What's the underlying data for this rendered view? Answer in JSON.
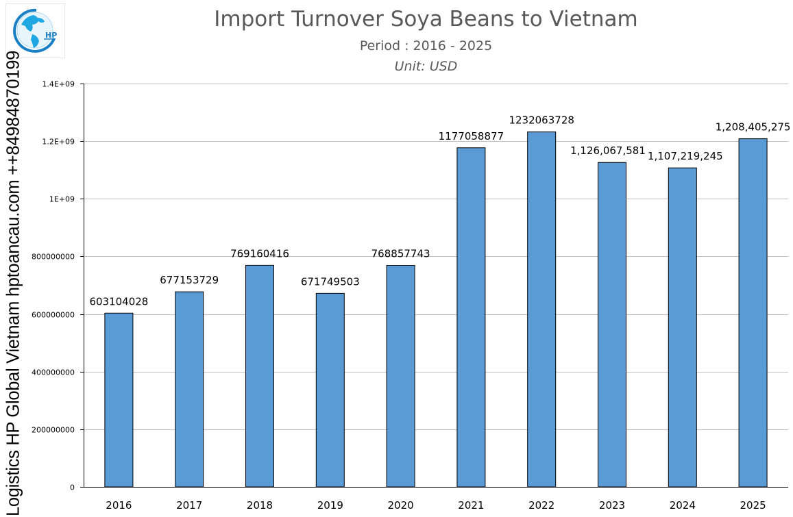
{
  "header": {
    "title": "Import Turnover Soya Beans to Vietnam",
    "subtitle": "Period : 2016 - 2025",
    "unit": "Unit: USD",
    "logo_text": "HP"
  },
  "watermark": "Logistics HP Global Vietnam hptoancau.com ++84984870199",
  "colors": {
    "bar": "#5B9BD5",
    "bar_border": "#000000",
    "grid": "#BFBFBF",
    "title": "#595959"
  },
  "chart_data": {
    "type": "bar",
    "title": "Import Turnover Soya Beans to Vietnam",
    "subtitle": "Period : 2016 - 2025",
    "unit": "Unit: USD",
    "xlabel": "",
    "ylabel": "",
    "categories": [
      "2016",
      "2017",
      "2018",
      "2019",
      "2020",
      "2021",
      "2022",
      "2023",
      "2024",
      "2025"
    ],
    "values": [
      603104028,
      677153729,
      769160416,
      671749503,
      768857743,
      1177058877,
      1232063728,
      1126067581,
      1107219245,
      1208405275
    ],
    "data_labels": [
      "603104028",
      "677153729",
      "769160416",
      "671749503",
      "768857743",
      "1177058877",
      "1232063728",
      "1,126,067,581",
      "1,107,219,245",
      "1,208,405,275"
    ],
    "ylim": [
      0,
      1400000000
    ],
    "yticks": [
      0,
      200000000,
      400000000,
      600000000,
      800000000,
      1000000000,
      1200000000,
      1400000000
    ],
    "ytick_labels": [
      "0",
      "200000000",
      "400000000",
      "600000000",
      "800000000",
      "1E+09",
      "1.2E+09",
      "1.4E+09"
    ],
    "grid": true,
    "legend": null
  }
}
